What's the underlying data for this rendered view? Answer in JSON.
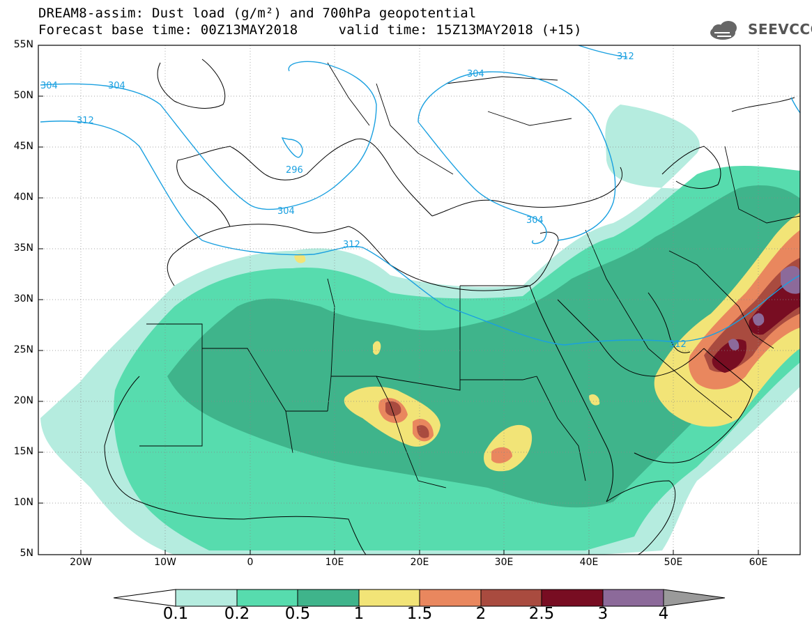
{
  "header": {
    "title_line1": "DREAM8-assim: Dust load (g/m²) and 700hPa geopotential",
    "title_line2": "Forecast base time: 00Z13MAY2018     valid time: 15Z13MAY2018 (+15)"
  },
  "logo": {
    "text": "SEEVCCC",
    "icon": "cloud-icon"
  },
  "axes": {
    "lat_labels": [
      "55N",
      "50N",
      "45N",
      "40N",
      "35N",
      "30N",
      "25N",
      "20N",
      "15N",
      "10N",
      "5N"
    ],
    "lon_labels": [
      "20W",
      "10W",
      "0",
      "10E",
      "20E",
      "30E",
      "40E",
      "50E",
      "60E"
    ]
  },
  "contours": {
    "color": "#1aa0e0",
    "labels": [
      "304",
      "304",
      "312",
      "312",
      "296",
      "304",
      "304",
      "304",
      "312",
      "312"
    ]
  },
  "colorbar": {
    "labels": [
      "0.1",
      "0.2",
      "0.5",
      "1",
      "1.5",
      "2",
      "2.5",
      "3",
      "4"
    ],
    "colors": [
      "#b5ecdf",
      "#57dcae",
      "#3fb48b",
      "#f2e477",
      "#e9875e",
      "#a94b3f",
      "#780d22",
      "#8c6a9a",
      "#9a9a9a"
    ]
  },
  "dust_colors": {
    "c01": "#b5ecdf",
    "c02": "#57dcae",
    "c05": "#3fb48b",
    "c1": "#f2e477",
    "c15": "#e9875e",
    "c2": "#a94b3f",
    "c25": "#780d22",
    "c3": "#8c6a9a"
  }
}
